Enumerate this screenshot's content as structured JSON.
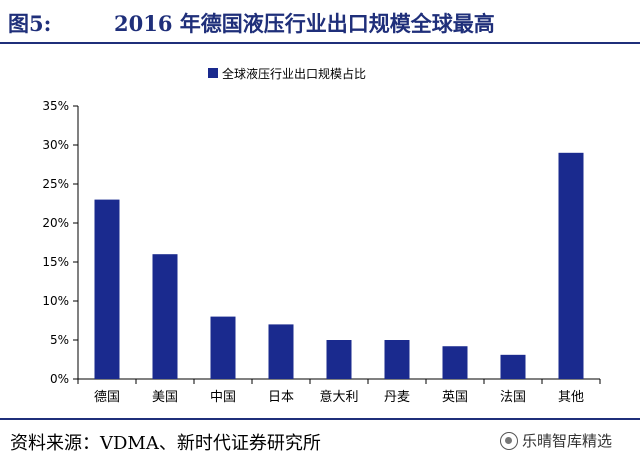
{
  "header": {
    "figure_label": "图5:",
    "title": "2016 年德国液压行业出口规模全球最高"
  },
  "footer": {
    "source": "资料来源：VDMA、新时代证券研究所",
    "watermark": "乐晴智库精选",
    "watermark_icon": "wechat-icon"
  },
  "chart_data": {
    "type": "bar",
    "title": "",
    "xlabel": "",
    "ylabel": "",
    "categories": [
      "德国",
      "美国",
      "中国",
      "日本",
      "意大利",
      "丹麦",
      "英国",
      "法国",
      "其他"
    ],
    "series": [
      {
        "name": "全球液压行业出口规模占比",
        "values": [
          0.23,
          0.16,
          0.08,
          0.07,
          0.05,
          0.05,
          0.042,
          0.031,
          0.29
        ]
      }
    ],
    "ylim": [
      0,
      0.35
    ],
    "yticks": [
      0,
      0.05,
      0.1,
      0.15,
      0.2,
      0.25,
      0.3,
      0.35
    ],
    "ytick_labels": [
      "0%",
      "5%",
      "10%",
      "15%",
      "20%",
      "25%",
      "30%",
      "35%"
    ],
    "legend_position": "top-center",
    "grid": false,
    "bar_color": "#1a2a8e"
  }
}
